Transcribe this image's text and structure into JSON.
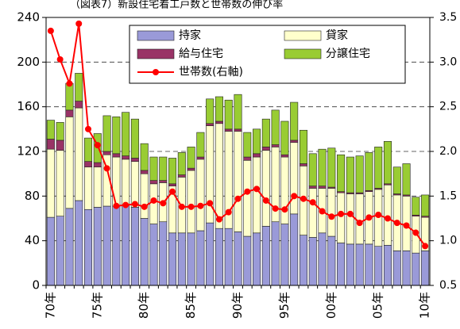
{
  "chart_data": {
    "type": "bar",
    "title": "（図表7）新設住宅着工戸数と世帯数の伸び率",
    "categories": [
      "70年",
      null,
      null,
      null,
      null,
      "75年",
      null,
      null,
      null,
      null,
      "80年",
      null,
      null,
      null,
      null,
      "85年",
      null,
      null,
      null,
      null,
      "90年",
      null,
      null,
      null,
      null,
      "95年",
      null,
      null,
      null,
      null,
      "00年",
      null,
      null,
      null,
      null,
      "05年",
      null,
      null,
      null,
      null,
      "10年"
    ],
    "stacked": true,
    "series": [
      {
        "name": "持家",
        "color": "#9a9ad8",
        "values": [
          61,
          62,
          69,
          76,
          68,
          70,
          71,
          71,
          72,
          70,
          60,
          55,
          57,
          47,
          47,
          47,
          49,
          56,
          51,
          51,
          48,
          44,
          47,
          53,
          57,
          55,
          64,
          45,
          43,
          47,
          44,
          38,
          37,
          37,
          37,
          35,
          36,
          31,
          31,
          29,
          31
        ]
      },
      {
        "name": "貸家",
        "color": "#ffffcc",
        "values": [
          61,
          59,
          82,
          83,
          38,
          36,
          46,
          44,
          41,
          41,
          40,
          36,
          35,
          42,
          50,
          56,
          64,
          87,
          94,
          87,
          90,
          68,
          68,
          68,
          67,
          60,
          64,
          62,
          44,
          40,
          43,
          45,
          45,
          45,
          47,
          51,
          54,
          50,
          49,
          33,
          30
        ]
      },
      {
        "name": "給与住宅",
        "color": "#993366",
        "values": [
          9,
          9,
          6,
          6,
          5,
          4,
          3,
          3,
          3,
          3,
          3,
          3,
          2,
          2,
          2,
          2,
          2,
          2,
          2,
          2,
          2,
          3,
          3,
          3,
          2,
          2,
          2,
          2,
          2,
          2,
          1,
          1,
          1,
          1,
          1,
          1,
          1,
          1,
          1,
          1,
          1
        ]
      },
      {
        "name": "分譲住宅",
        "color": "#99cc33",
        "values": [
          17,
          16,
          24,
          25,
          21,
          26,
          32,
          33,
          39,
          35,
          24,
          21,
          21,
          23,
          20,
          19,
          22,
          22,
          22,
          26,
          31,
          22,
          22,
          25,
          31,
          30,
          34,
          30,
          29,
          33,
          35,
          33,
          32,
          33,
          34,
          37,
          38,
          24,
          28,
          16,
          19
        ]
      },
      {
        "name": "世帯数(右軸)",
        "color": "#ff0000",
        "type": "line",
        "axis": "y2",
        "values": [
          3.35,
          3.03,
          2.76,
          3.43,
          2.25,
          2.07,
          1.81,
          1.39,
          1.4,
          1.41,
          1.38,
          1.45,
          1.42,
          1.55,
          1.38,
          1.38,
          1.39,
          1.42,
          1.24,
          1.32,
          1.47,
          1.55,
          1.58,
          1.45,
          1.36,
          1.35,
          1.5,
          1.47,
          1.43,
          1.33,
          1.27,
          1.3,
          1.3,
          1.2,
          1.26,
          1.29,
          1.25,
          1.2,
          1.17,
          1.09,
          0.94
        ]
      }
    ],
    "ylim": [
      0,
      240
    ],
    "yticks": [
      0,
      40,
      80,
      120,
      160,
      200,
      240
    ],
    "y2lim": [
      0.5,
      3.5
    ],
    "y2ticks": [
      0.5,
      {
        "value": 1,
        "label": "1.0"
      },
      1.5,
      {
        "value": 2,
        "label": "2.0"
      },
      2.5,
      {
        "value": 3,
        "label": "3.0"
      },
      3.5
    ],
    "grid": true,
    "legend": "top"
  }
}
